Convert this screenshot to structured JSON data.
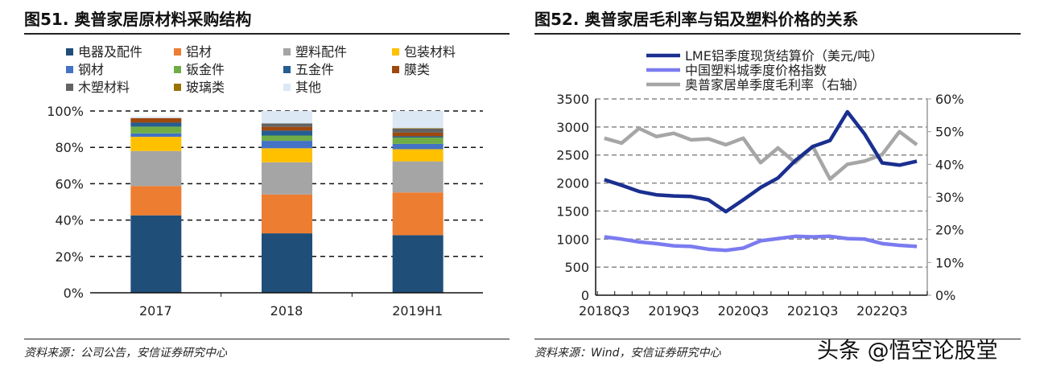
{
  "left": {
    "title": "图51. 奥普家居原材料采购结构",
    "source": "资料来源：公司公告，安信证券研究中心"
  },
  "right": {
    "title": "图52. 奥普家居毛利率与铝及塑料价格的关系",
    "source": "资料来源：Wind，安信证券研究中心"
  },
  "watermark": "头条 @悟空论股堂",
  "chart_data": [
    {
      "type": "bar",
      "stacked": true,
      "categories": [
        "2017",
        "2018",
        "2019H1"
      ],
      "ylim": [
        0,
        100
      ],
      "yticks": [
        "0%",
        "20%",
        "40%",
        "60%",
        "80%",
        "100%"
      ],
      "grid": true,
      "legend": "top",
      "series": [
        {
          "name": "电器及配件",
          "color": "#1f4e79",
          "values": [
            42.6,
            32.7,
            31.7
          ]
        },
        {
          "name": "铝材",
          "color": "#ed7d31",
          "values": [
            16.1,
            21.4,
            23.5
          ]
        },
        {
          "name": "塑料配件",
          "color": "#a5a5a5",
          "values": [
            19.3,
            17.7,
            17.1
          ]
        },
        {
          "name": "包装材料",
          "color": "#ffc000",
          "values": [
            7.8,
            7.7,
            6.7
          ]
        },
        {
          "name": "钢材",
          "color": "#4472c4",
          "values": [
            1.9,
            4.1,
            2.9
          ]
        },
        {
          "name": "钣金件",
          "color": "#70ad47",
          "values": [
            3.7,
            2.9,
            3.5
          ]
        },
        {
          "name": "五金件",
          "color": "#255e91",
          "values": [
            2.2,
            2.7,
            0.7
          ]
        },
        {
          "name": "膜类",
          "color": "#9e480e",
          "values": [
            2.5,
            2.1,
            2.0
          ]
        },
        {
          "name": "木塑材料",
          "color": "#636363",
          "values": [
            0,
            1.9,
            2.2
          ]
        },
        {
          "name": "玻璃类",
          "color": "#997300",
          "values": [
            0,
            0,
            0.3
          ]
        },
        {
          "name": "其他",
          "color": "#dde8f5",
          "values": [
            0.8,
            6.8,
            9.4
          ]
        }
      ]
    },
    {
      "type": "line",
      "x": [
        "2018Q3",
        "2018Q4",
        "2019Q1",
        "2019Q2",
        "2019Q3",
        "2019Q4",
        "2020Q1",
        "2020Q2",
        "2020Q3",
        "2020Q4",
        "2021Q1",
        "2021Q2",
        "2021Q3",
        "2021Q4",
        "2022Q1",
        "2022Q2",
        "2022Q3",
        "2022Q4",
        "2023Q1"
      ],
      "xticks": [
        "2018Q3",
        "2019Q3",
        "2020Q3",
        "2021Q3",
        "2022Q3"
      ],
      "ylim": [
        0,
        3500
      ],
      "yticks": [
        "0",
        "500",
        "1000",
        "1500",
        "2000",
        "2500",
        "3000",
        "3500"
      ],
      "y2lim": [
        0,
        60
      ],
      "y2ticks": [
        "0%",
        "10%",
        "20%",
        "30%",
        "40%",
        "50%",
        "60%"
      ],
      "grid": true,
      "legend": "top-left",
      "series": [
        {
          "name": "LME铝季度现货结算价（美元/吨）",
          "color": "#1a2f8f",
          "axis": "left",
          "values": [
            2060,
            1960,
            1850,
            1790,
            1770,
            1760,
            1700,
            1490,
            1700,
            1920,
            2090,
            2400,
            2650,
            2760,
            3270,
            2870,
            2360,
            2320,
            2390
          ]
        },
        {
          "name": "中国塑料城季度价格指数",
          "color": "#7b7bf0",
          "axis": "left",
          "values": [
            1040,
            1000,
            950,
            920,
            880,
            870,
            820,
            800,
            840,
            970,
            1010,
            1050,
            1040,
            1050,
            1010,
            1000,
            920,
            890,
            870
          ]
        },
        {
          "name": "奥普家居单季度毛利率（右轴）",
          "color": "#a6a6a6",
          "axis": "right",
          "values": [
            48,
            46.5,
            51,
            48.5,
            49.5,
            47.5,
            47.8,
            46,
            48,
            40.5,
            45,
            40.5,
            45.5,
            35.5,
            40,
            41,
            43,
            50,
            46
          ]
        }
      ]
    }
  ]
}
